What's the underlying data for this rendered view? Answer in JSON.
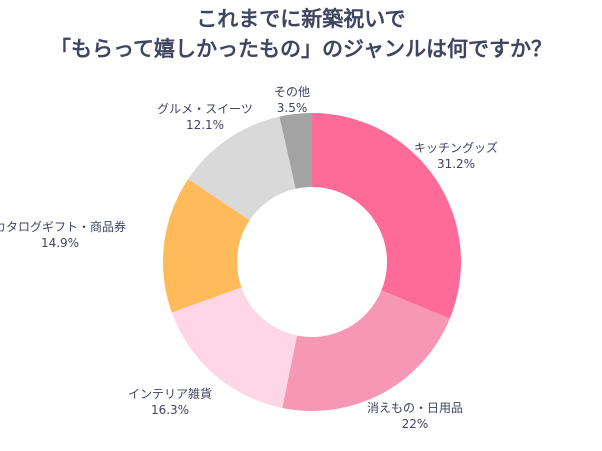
{
  "chart_data": {
    "type": "pie",
    "donut": true,
    "title_lines": [
      "これまでに新築祝いで",
      "「もらって嬉しかったもの」のジャンルは何ですか？"
    ],
    "categories": [
      "キッチングッズ",
      "消えもの・日用品",
      "インテリア雑貨",
      "カタログギフト・商品券",
      "グルメ・スイーツ",
      "その他"
    ],
    "values": [
      31.2,
      22,
      16.3,
      14.9,
      12.1,
      3.5
    ],
    "value_labels": [
      "31.2%",
      "22%",
      "16.3%",
      "14.9%",
      "12.1%",
      "3.5%"
    ],
    "colors": [
      "#FF6B98",
      "#F797B6",
      "#FFD6E6",
      "#FFBA5A",
      "#D9D9D9",
      "#A3A3A3"
    ],
    "start": "top",
    "direction": "clockwise",
    "legend": "none"
  }
}
